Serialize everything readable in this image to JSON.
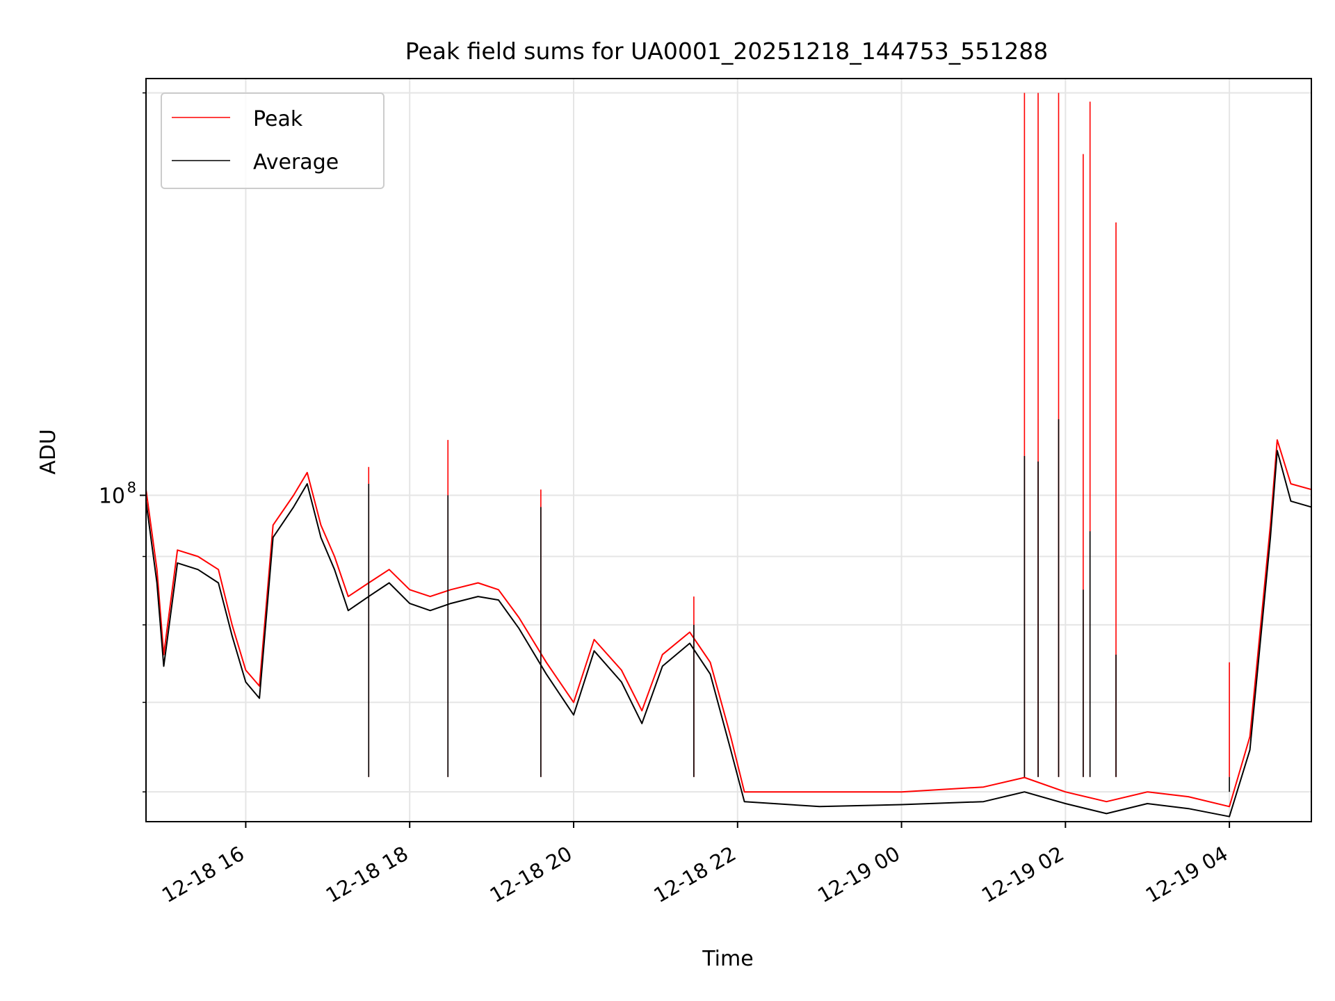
{
  "chart_data": {
    "type": "line",
    "title": "Peak field sums for UA0001_20251218_144753_551288",
    "xlabel": "Time",
    "ylabel": "ADU",
    "y_scale": "log",
    "ylim": [
      57000000,
      205000000
    ],
    "xlim": [
      "2025-12-18 14:47",
      "2025-12-19 05:00"
    ],
    "x_ticks": [
      {
        "t": "2025-12-18 16:00",
        "label": "12-18 16"
      },
      {
        "t": "2025-12-18 18:00",
        "label": "12-18 18"
      },
      {
        "t": "2025-12-18 20:00",
        "label": "12-18 20"
      },
      {
        "t": "2025-12-18 22:00",
        "label": "12-18 22"
      },
      {
        "t": "2025-12-19 00:00",
        "label": "12-19 00"
      },
      {
        "t": "2025-12-19 02:00",
        "label": "12-19 02"
      },
      {
        "t": "2025-12-19 04:00",
        "label": "12-19 04"
      }
    ],
    "y_major_tick": {
      "value": 100000000,
      "label_base": "10",
      "label_exp": "8"
    },
    "y_minor_ticks": [
      60000000,
      70000000,
      80000000,
      90000000,
      200000000
    ],
    "grid": true,
    "legend_position": "upper-left",
    "series": [
      {
        "name": "Peak",
        "color": "#ff0000",
        "points": [
          [
            "2025-12-18 14:47",
            101000000
          ],
          [
            "2025-12-18 14:55",
            88000000
          ],
          [
            "2025-12-18 15:00",
            76000000
          ],
          [
            "2025-12-18 15:10",
            91000000
          ],
          [
            "2025-12-18 15:25",
            90000000
          ],
          [
            "2025-12-18 15:40",
            88000000
          ],
          [
            "2025-12-18 15:50",
            80000000
          ],
          [
            "2025-12-18 16:00",
            74000000
          ],
          [
            "2025-12-18 16:10",
            72000000
          ],
          [
            "2025-12-18 16:20",
            95000000
          ],
          [
            "2025-12-18 16:35",
            100000000
          ],
          [
            "2025-12-18 16:45",
            104000000
          ],
          [
            "2025-12-18 16:55",
            95000000
          ],
          [
            "2025-12-18 17:05",
            90000000
          ],
          [
            "2025-12-18 17:15",
            84000000
          ],
          [
            "2025-12-18 17:30",
            86000000
          ],
          [
            "2025-12-18 17:45",
            88000000
          ],
          [
            "2025-12-18 18:00",
            85000000
          ],
          [
            "2025-12-18 18:15",
            84000000
          ],
          [
            "2025-12-18 18:30",
            85000000
          ],
          [
            "2025-12-18 18:50",
            86000000
          ],
          [
            "2025-12-18 19:05",
            85000000
          ],
          [
            "2025-12-18 19:20",
            81000000
          ],
          [
            "2025-12-18 19:40",
            75000000
          ],
          [
            "2025-12-18 20:00",
            70000000
          ],
          [
            "2025-12-18 20:15",
            78000000
          ],
          [
            "2025-12-18 20:35",
            74000000
          ],
          [
            "2025-12-18 20:50",
            69000000
          ],
          [
            "2025-12-18 21:05",
            76000000
          ],
          [
            "2025-12-18 21:25",
            79000000
          ],
          [
            "2025-12-18 21:40",
            75000000
          ],
          [
            "2025-12-18 21:55",
            66000000
          ],
          [
            "2025-12-18 22:05",
            60000000
          ],
          [
            "2025-12-18 23:00",
            60000000
          ],
          [
            "2025-12-19 00:00",
            60000000
          ],
          [
            "2025-12-19 01:00",
            60500000
          ],
          [
            "2025-12-19 01:30",
            61500000
          ],
          [
            "2025-12-19 02:00",
            60000000
          ],
          [
            "2025-12-19 02:30",
            59000000
          ],
          [
            "2025-12-19 03:00",
            60000000
          ],
          [
            "2025-12-19 03:30",
            59500000
          ],
          [
            "2025-12-19 04:00",
            58500000
          ],
          [
            "2025-12-19 04:15",
            66000000
          ],
          [
            "2025-12-19 04:30",
            95000000
          ],
          [
            "2025-12-19 04:35",
            110000000
          ],
          [
            "2025-12-19 04:45",
            102000000
          ],
          [
            "2025-12-19 05:00",
            101000000
          ]
        ],
        "spikes": [
          [
            "2025-12-18 17:30",
            105000000
          ],
          [
            "2025-12-18 18:28",
            110000000
          ],
          [
            "2025-12-18 19:36",
            101000000
          ],
          [
            "2025-12-18 21:28",
            84000000
          ],
          [
            "2025-12-19 01:30",
            200000000
          ],
          [
            "2025-12-19 01:40",
            200000000
          ],
          [
            "2025-12-19 01:55",
            200000000
          ],
          [
            "2025-12-19 02:13",
            180000000
          ],
          [
            "2025-12-19 02:18",
            197000000
          ],
          [
            "2025-12-19 02:37",
            160000000
          ],
          [
            "2025-12-19 04:00",
            75000000
          ]
        ]
      },
      {
        "name": "Average",
        "color": "#000000",
        "points": [
          [
            "2025-12-18 14:47",
            99000000
          ],
          [
            "2025-12-18 14:55",
            86000000
          ],
          [
            "2025-12-18 15:00",
            74500000
          ],
          [
            "2025-12-18 15:10",
            89000000
          ],
          [
            "2025-12-18 15:25",
            88000000
          ],
          [
            "2025-12-18 15:40",
            86000000
          ],
          [
            "2025-12-18 15:50",
            78500000
          ],
          [
            "2025-12-18 16:00",
            72500000
          ],
          [
            "2025-12-18 16:10",
            70500000
          ],
          [
            "2025-12-18 16:20",
            93000000
          ],
          [
            "2025-12-18 16:35",
            98000000
          ],
          [
            "2025-12-18 16:45",
            102000000
          ],
          [
            "2025-12-18 16:55",
            93000000
          ],
          [
            "2025-12-18 17:05",
            88000000
          ],
          [
            "2025-12-18 17:15",
            82000000
          ],
          [
            "2025-12-18 17:30",
            84000000
          ],
          [
            "2025-12-18 17:45",
            86000000
          ],
          [
            "2025-12-18 18:00",
            83000000
          ],
          [
            "2025-12-18 18:15",
            82000000
          ],
          [
            "2025-12-18 18:30",
            83000000
          ],
          [
            "2025-12-18 18:50",
            84000000
          ],
          [
            "2025-12-18 19:05",
            83500000
          ],
          [
            "2025-12-18 19:20",
            79500000
          ],
          [
            "2025-12-18 19:40",
            73500000
          ],
          [
            "2025-12-18 20:00",
            68500000
          ],
          [
            "2025-12-18 20:15",
            76500000
          ],
          [
            "2025-12-18 20:35",
            72500000
          ],
          [
            "2025-12-18 20:50",
            67500000
          ],
          [
            "2025-12-18 21:05",
            74500000
          ],
          [
            "2025-12-18 21:25",
            77500000
          ],
          [
            "2025-12-18 21:40",
            73500000
          ],
          [
            "2025-12-18 21:55",
            64500000
          ],
          [
            "2025-12-18 22:05",
            59000000
          ],
          [
            "2025-12-18 23:00",
            58500000
          ],
          [
            "2025-12-19 00:00",
            58700000
          ],
          [
            "2025-12-19 01:00",
            59000000
          ],
          [
            "2025-12-19 01:30",
            60000000
          ],
          [
            "2025-12-19 02:00",
            58800000
          ],
          [
            "2025-12-19 02:30",
            57800000
          ],
          [
            "2025-12-19 03:00",
            58800000
          ],
          [
            "2025-12-19 03:30",
            58300000
          ],
          [
            "2025-12-19 04:00",
            57500000
          ],
          [
            "2025-12-19 04:15",
            64500000
          ],
          [
            "2025-12-19 04:30",
            93000000
          ],
          [
            "2025-12-19 04:35",
            108000000
          ],
          [
            "2025-12-19 04:45",
            99000000
          ],
          [
            "2025-12-19 05:00",
            98000000
          ]
        ],
        "spikes": [
          [
            "2025-12-18 17:30",
            102000000
          ],
          [
            "2025-12-18 18:28",
            100000000
          ],
          [
            "2025-12-18 19:36",
            98000000
          ],
          [
            "2025-12-18 21:28",
            80000000
          ],
          [
            "2025-12-19 01:30",
            107000000
          ],
          [
            "2025-12-19 01:40",
            106000000
          ],
          [
            "2025-12-19 01:55",
            114000000
          ],
          [
            "2025-12-19 02:13",
            85000000
          ],
          [
            "2025-12-19 02:18",
            94000000
          ],
          [
            "2025-12-19 02:37",
            76000000
          ],
          [
            "2025-12-19 04:00",
            60000000
          ]
        ]
      }
    ]
  }
}
